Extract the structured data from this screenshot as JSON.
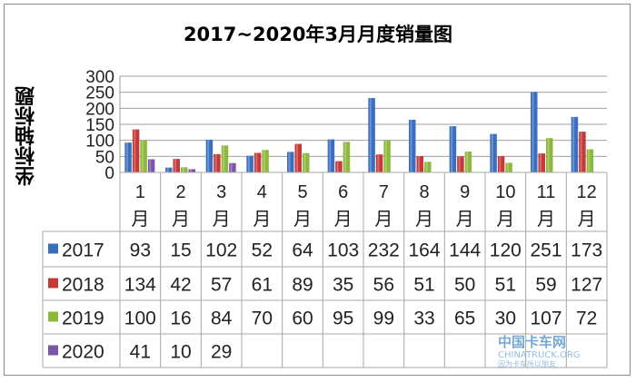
{
  "chart_data": {
    "type": "bar",
    "title": "2017~2020年3月月度销量图",
    "ylabel": "坐标轴标题",
    "xlabel": "",
    "ylim": [
      0,
      300
    ],
    "yticks": [
      0,
      50,
      100,
      150,
      200,
      250,
      300
    ],
    "grid": true,
    "legend": "data-table",
    "categories": [
      "1月",
      "2月",
      "3月",
      "4月",
      "5月",
      "6月",
      "7月",
      "8月",
      "9月",
      "10月",
      "11月",
      "12月"
    ],
    "series": [
      {
        "name": "2017",
        "color": "#3a6fc0",
        "values": [
          93,
          15,
          102,
          52,
          64,
          103,
          232,
          164,
          144,
          120,
          251,
          173
        ]
      },
      {
        "name": "2018",
        "color": "#c43a38",
        "values": [
          134,
          42,
          57,
          61,
          89,
          35,
          56,
          51,
          50,
          51,
          59,
          127
        ]
      },
      {
        "name": "2019",
        "color": "#8db83c",
        "values": [
          100,
          16,
          84,
          70,
          60,
          95,
          99,
          33,
          65,
          30,
          107,
          72
        ]
      },
      {
        "name": "2020",
        "color": "#7b55a8",
        "values": [
          41,
          10,
          29,
          null,
          null,
          null,
          null,
          null,
          null,
          null,
          null,
          null
        ]
      }
    ]
  },
  "watermark": {
    "line1": "中国卡车网",
    "line2": "CHINATRUCK.ORG",
    "line3": "因为卡车所以朋友"
  }
}
